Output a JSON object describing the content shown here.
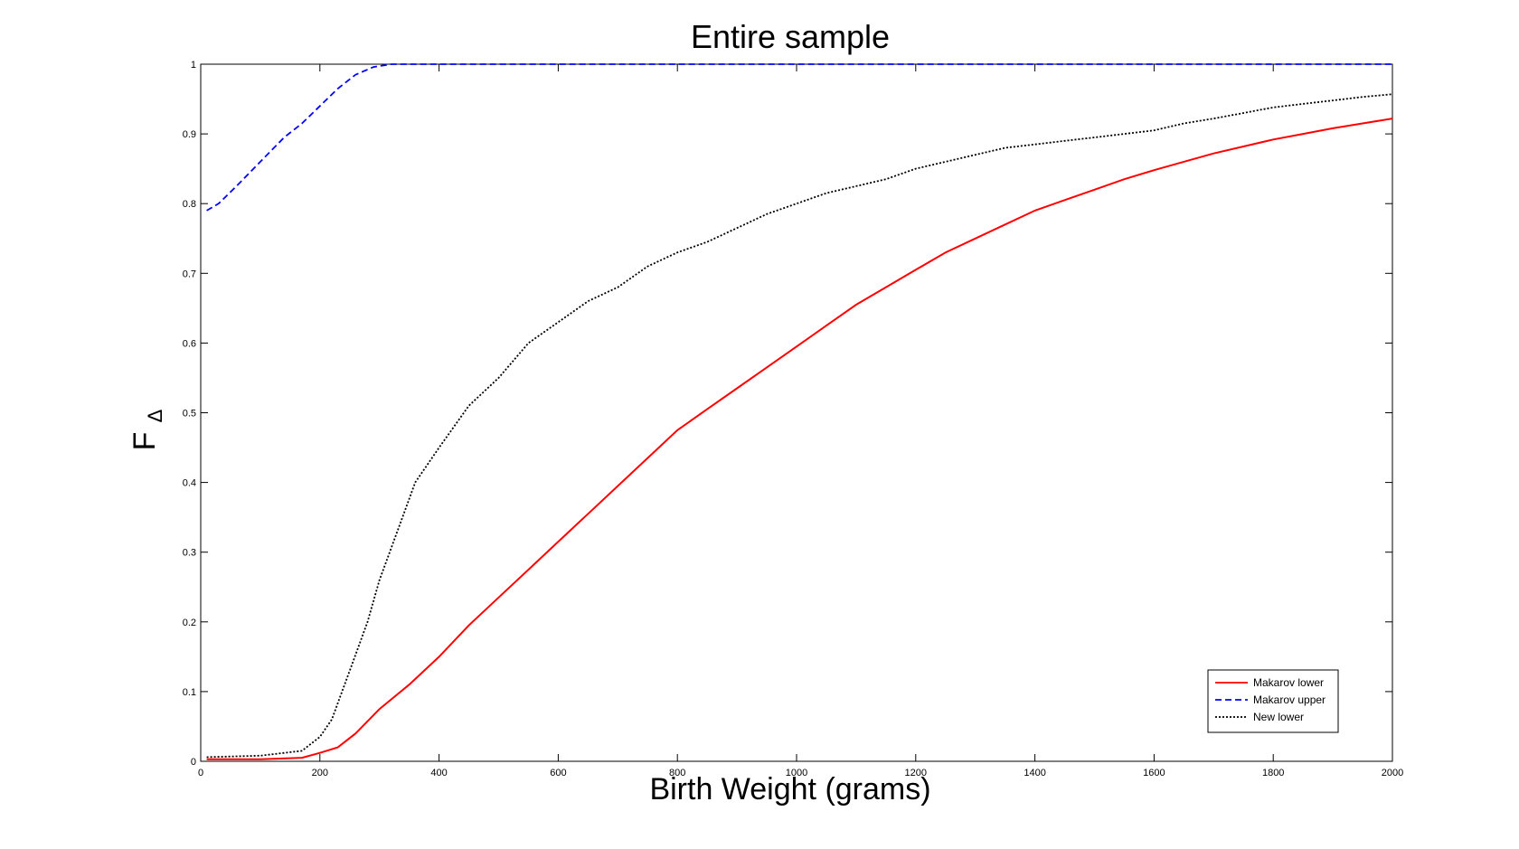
{
  "chart_data": {
    "type": "line",
    "title": "Entire sample",
    "xlabel": "Birth Weight (grams)",
    "ylabel_main": "F",
    "ylabel_sub": "Δ",
    "xlim": [
      0,
      2000
    ],
    "ylim": [
      0,
      1
    ],
    "xticks": [
      0,
      200,
      400,
      600,
      800,
      1000,
      1200,
      1400,
      1600,
      1800,
      2000
    ],
    "yticks": [
      0,
      0.1,
      0.2,
      0.3,
      0.4,
      0.5,
      0.6,
      0.7,
      0.8,
      0.9,
      1
    ],
    "ytick_labels": [
      "0",
      "0.1",
      "0.2",
      "0.3",
      "0.4",
      "0.5",
      "0.6",
      "0.7",
      "0.8",
      "0.9",
      "1"
    ],
    "grid": false,
    "legend_position": "bottom-right",
    "series": [
      {
        "name": "Makarov lower",
        "color": "#ff0000",
        "style": "solid",
        "x": [
          10,
          100,
          170,
          200,
          230,
          260,
          300,
          350,
          400,
          450,
          500,
          550,
          600,
          650,
          700,
          750,
          800,
          850,
          900,
          950,
          1000,
          1050,
          1100,
          1150,
          1200,
          1250,
          1300,
          1350,
          1400,
          1450,
          1500,
          1550,
          1600,
          1650,
          1700,
          1750,
          1800,
          1850,
          1900,
          1950,
          2000
        ],
        "y": [
          0.003,
          0.003,
          0.005,
          0.012,
          0.02,
          0.04,
          0.075,
          0.11,
          0.15,
          0.195,
          0.235,
          0.275,
          0.315,
          0.355,
          0.395,
          0.435,
          0.475,
          0.505,
          0.535,
          0.565,
          0.595,
          0.625,
          0.655,
          0.68,
          0.705,
          0.73,
          0.75,
          0.77,
          0.79,
          0.805,
          0.82,
          0.835,
          0.848,
          0.86,
          0.872,
          0.882,
          0.892,
          0.9,
          0.908,
          0.915,
          0.922
        ]
      },
      {
        "name": "Makarov upper",
        "color": "#0000ff",
        "style": "dashed",
        "x": [
          10,
          30,
          60,
          100,
          140,
          170,
          200,
          230,
          260,
          290,
          320,
          350,
          400,
          600,
          800,
          1000,
          1200,
          1400,
          1600,
          1800,
          2000
        ],
        "y": [
          0.79,
          0.8,
          0.825,
          0.86,
          0.895,
          0.915,
          0.94,
          0.965,
          0.985,
          0.996,
          1.0,
          1.0,
          1.0,
          1.0,
          1.0,
          1.0,
          1.0,
          1.0,
          1.0,
          1.0,
          1.0
        ]
      },
      {
        "name": "New lower",
        "color": "#000000",
        "style": "dotted",
        "x": [
          10,
          100,
          170,
          200,
          220,
          250,
          280,
          300,
          330,
          360,
          400,
          450,
          500,
          550,
          600,
          650,
          700,
          750,
          800,
          850,
          900,
          950,
          1000,
          1050,
          1100,
          1150,
          1200,
          1250,
          1300,
          1350,
          1400,
          1450,
          1500,
          1550,
          1600,
          1650,
          1700,
          1750,
          1800,
          1850,
          1900,
          1950,
          2000
        ],
        "y": [
          0.006,
          0.008,
          0.015,
          0.035,
          0.06,
          0.13,
          0.2,
          0.26,
          0.33,
          0.4,
          0.45,
          0.51,
          0.55,
          0.6,
          0.63,
          0.66,
          0.68,
          0.71,
          0.73,
          0.745,
          0.765,
          0.785,
          0.8,
          0.815,
          0.825,
          0.835,
          0.85,
          0.86,
          0.87,
          0.88,
          0.885,
          0.89,
          0.895,
          0.9,
          0.905,
          0.915,
          0.922,
          0.93,
          0.938,
          0.943,
          0.948,
          0.953,
          0.957
        ]
      }
    ]
  }
}
